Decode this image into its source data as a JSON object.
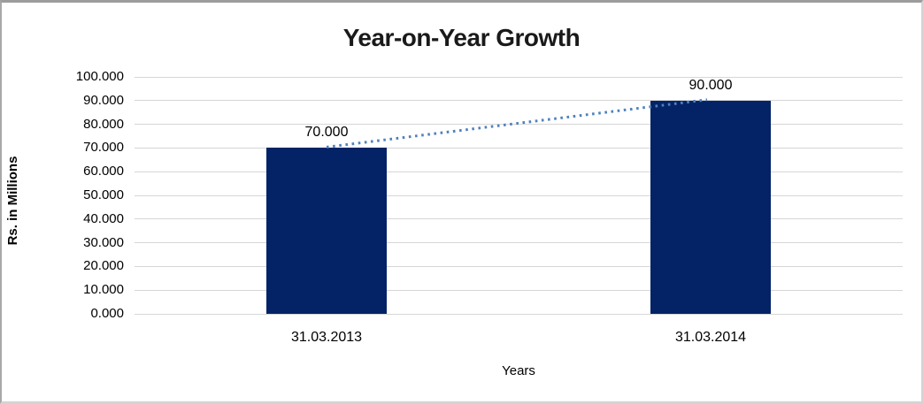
{
  "chart_data": {
    "type": "bar",
    "title": "Year-on-Year Growth",
    "xlabel": "Years",
    "ylabel": "Rs. in Millions",
    "categories": [
      "31.03.2013",
      "31.03.2014"
    ],
    "series": [
      {
        "values": [
          70,
          90
        ],
        "value_labels": [
          "70.000",
          "90.000"
        ]
      }
    ],
    "ylim": [
      0,
      100
    ],
    "ytick_values": [
      0,
      10,
      20,
      30,
      40,
      50,
      60,
      70,
      80,
      90,
      100
    ],
    "ytick_labels": [
      "0.000",
      "10.000",
      "20.000",
      "30.000",
      "40.000",
      "50.000",
      "60.000",
      "70.000",
      "80.000",
      "90.000",
      "100.000"
    ],
    "grid": true,
    "legend": false,
    "trendline": {
      "style": "dotted",
      "from_value": 70,
      "to_value": 90
    },
    "colors": {
      "bar": "#032366",
      "trendline": "#4f81bd",
      "gridline": "#d6d6d6",
      "title_text": "#1a1a1a",
      "axis_text": "#000000",
      "background": "#ffffff"
    }
  }
}
